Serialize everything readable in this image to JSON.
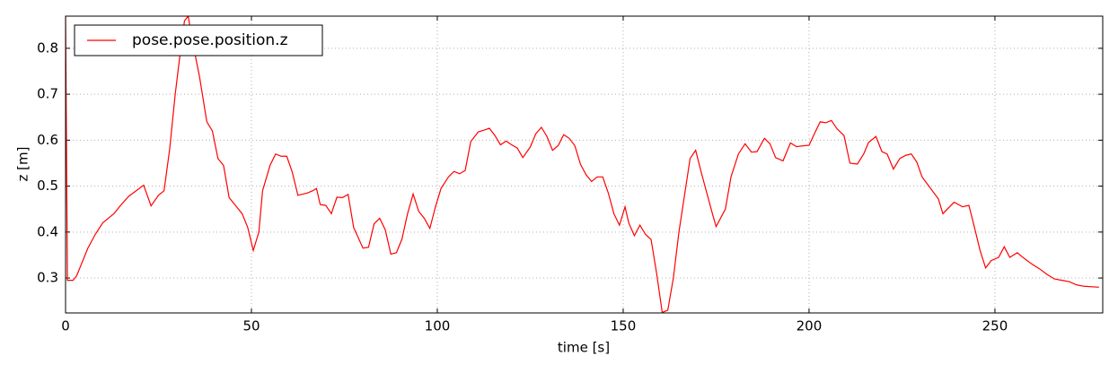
{
  "chart_data": {
    "type": "line",
    "xlabel": "time [s]",
    "ylabel": "z [m]",
    "xlim": [
      0,
      279
    ],
    "ylim": [
      0.224,
      0.87
    ],
    "xticks": [
      0,
      50,
      100,
      150,
      200,
      250
    ],
    "yticks": [
      0.3,
      0.4,
      0.5,
      0.6,
      0.7,
      0.8
    ],
    "grid": true,
    "legend": "upper left",
    "x": [
      0,
      0.5,
      2,
      3,
      6,
      8,
      10,
      13,
      15,
      17,
      19,
      21,
      23,
      25,
      26.5,
      28,
      29.5,
      31,
      32,
      33,
      34,
      36,
      38,
      39.5,
      41,
      42.5,
      44,
      46,
      47.5,
      49,
      50.5,
      52,
      53,
      55,
      56.5,
      58,
      59.5,
      61,
      62.5,
      65,
      66.5,
      67.5,
      68.5,
      70,
      71.5,
      73,
      74.5,
      76,
      77.5,
      80,
      81.5,
      83,
      84.5,
      86,
      87.5,
      89,
      90.5,
      92,
      93.5,
      95,
      96.5,
      98,
      99.5,
      101,
      103,
      104.5,
      106,
      107.5,
      109,
      111,
      113,
      114,
      115.5,
      117,
      118.5,
      120,
      121.5,
      123,
      125,
      126.5,
      128,
      129.5,
      131,
      132.5,
      134,
      135.5,
      137,
      138.5,
      140,
      141.5,
      143,
      144.5,
      146,
      147.5,
      149,
      150.5,
      151.5,
      153,
      154.5,
      156,
      157.5,
      159,
      160.5,
      162,
      163.5,
      165,
      166.5,
      168,
      169.5,
      171,
      172.5,
      174,
      175,
      177.5,
      179,
      181,
      182.8,
      184.5,
      186,
      188,
      189.5,
      191,
      193,
      195,
      196.6,
      200,
      201.5,
      203,
      204.5,
      206,
      207.5,
      209.4,
      211,
      213,
      214.7,
      216,
      218,
      219.6,
      221,
      222.7,
      224.4,
      226,
      227.5,
      229,
      230.4,
      234.8,
      236,
      239,
      241.3,
      243,
      244.5,
      246,
      247.5,
      249,
      251,
      252.5,
      254,
      256,
      258,
      260,
      262,
      264,
      266,
      268,
      270,
      272,
      274,
      278
    ],
    "series": [
      {
        "name": "pose.pose.position.z",
        "color": "#ff0000",
        "values": [
          0.87,
          0.295,
          0.295,
          0.305,
          0.365,
          0.395,
          0.42,
          0.44,
          0.46,
          0.478,
          0.49,
          0.502,
          0.457,
          0.48,
          0.49,
          0.58,
          0.7,
          0.8,
          0.86,
          0.87,
          0.82,
          0.74,
          0.64,
          0.62,
          0.56,
          0.545,
          0.475,
          0.455,
          0.44,
          0.41,
          0.36,
          0.4,
          0.49,
          0.545,
          0.57,
          0.565,
          0.565,
          0.53,
          0.48,
          0.485,
          0.49,
          0.495,
          0.46,
          0.458,
          0.44,
          0.476,
          0.475,
          0.482,
          0.41,
          0.365,
          0.367,
          0.418,
          0.43,
          0.405,
          0.352,
          0.355,
          0.385,
          0.44,
          0.483,
          0.445,
          0.43,
          0.408,
          0.455,
          0.495,
          0.52,
          0.532,
          0.527,
          0.534,
          0.597,
          0.618,
          0.623,
          0.626,
          0.61,
          0.59,
          0.598,
          0.59,
          0.583,
          0.562,
          0.585,
          0.614,
          0.628,
          0.608,
          0.578,
          0.588,
          0.612,
          0.604,
          0.588,
          0.548,
          0.525,
          0.51,
          0.52,
          0.52,
          0.485,
          0.44,
          0.415,
          0.455,
          0.42,
          0.392,
          0.415,
          0.395,
          0.384,
          0.31,
          0.225,
          0.23,
          0.3,
          0.4,
          0.48,
          0.56,
          0.578,
          0.53,
          0.485,
          0.44,
          0.412,
          0.45,
          0.52,
          0.57,
          0.592,
          0.574,
          0.575,
          0.604,
          0.592,
          0.562,
          0.555,
          0.594,
          0.586,
          0.589,
          0.615,
          0.64,
          0.638,
          0.643,
          0.625,
          0.61,
          0.55,
          0.548,
          0.57,
          0.595,
          0.608,
          0.575,
          0.57,
          0.537,
          0.56,
          0.567,
          0.57,
          0.552,
          0.52,
          0.472,
          0.44,
          0.465,
          0.455,
          0.458,
          0.41,
          0.36,
          0.322,
          0.338,
          0.345,
          0.368,
          0.345,
          0.355,
          0.342,
          0.33,
          0.32,
          0.308,
          0.298,
          0.295,
          0.292,
          0.285,
          0.282,
          0.28
        ]
      }
    ]
  }
}
